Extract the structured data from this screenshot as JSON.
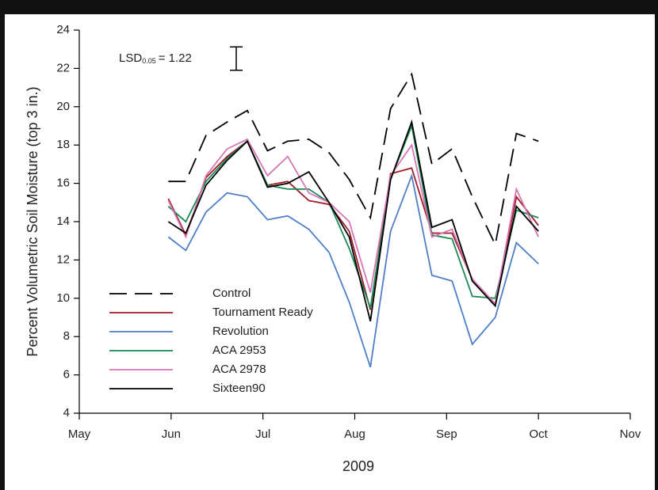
{
  "chart_data": {
    "type": "line",
    "xlabel": "2009",
    "ylabel": "Percent Volumetric Soil Moisture (top 3 in.)",
    "x": [
      5.97,
      6.16,
      6.38,
      6.61,
      6.83,
      7.05,
      7.27,
      7.5,
      7.72,
      7.94,
      8.17,
      8.39,
      8.62,
      8.84,
      9.06,
      9.28,
      9.53,
      9.76,
      10.0
    ],
    "xlim": [
      5,
      11
    ],
    "xticks": [
      {
        "value": 5,
        "label": "May"
      },
      {
        "value": 6,
        "label": "Jun"
      },
      {
        "value": 7,
        "label": "Jul"
      },
      {
        "value": 8,
        "label": "Aug"
      },
      {
        "value": 9,
        "label": "Sep"
      },
      {
        "value": 10,
        "label": "Oct"
      },
      {
        "value": 11,
        "label": "Nov"
      }
    ],
    "ylim": [
      4,
      24
    ],
    "yticks": [
      4,
      6,
      8,
      10,
      12,
      14,
      16,
      18,
      20,
      22,
      24
    ],
    "legend": "lower-left",
    "lsd_label": "LSD",
    "lsd_subscript": "0.05",
    "lsd_text": "= 1.22",
    "lsd_value": 1.22,
    "series": [
      {
        "name": "Control",
        "color": "#000000",
        "dashed": true,
        "values": [
          16.1,
          16.1,
          18.5,
          19.2,
          19.8,
          17.7,
          18.2,
          18.3,
          17.6,
          16.2,
          14.2,
          19.9,
          21.7,
          17.0,
          17.8,
          15.3,
          12.8,
          18.6,
          18.2
        ]
      },
      {
        "name": "Tournament Ready",
        "color": "#a01c2a",
        "values": [
          15.2,
          13.3,
          16.3,
          17.4,
          18.2,
          15.9,
          16.1,
          15.1,
          14.9,
          13.5,
          9.4,
          16.5,
          16.8,
          13.4,
          13.4,
          11.0,
          9.7,
          15.3,
          13.8
        ]
      },
      {
        "name": "Revolution",
        "color": "#4f7fc8",
        "values": [
          13.2,
          12.5,
          14.5,
          15.5,
          15.3,
          14.1,
          14.3,
          13.6,
          12.4,
          9.8,
          6.4,
          13.5,
          16.4,
          11.2,
          10.9,
          7.6,
          9.0,
          12.9,
          11.8
        ]
      },
      {
        "name": "ACA 2953",
        "color": "#1a8a55",
        "values": [
          14.8,
          14.0,
          16.1,
          17.3,
          18.2,
          15.9,
          15.7,
          15.7,
          15.0,
          12.6,
          9.5,
          16.2,
          19.0,
          13.3,
          13.1,
          10.1,
          10.0,
          14.6,
          14.2
        ]
      },
      {
        "name": "ACA 2978",
        "color": "#d676b5",
        "values": [
          15.1,
          13.2,
          16.4,
          17.8,
          18.3,
          16.4,
          17.4,
          15.5,
          15.0,
          14.0,
          10.3,
          16.4,
          18.0,
          13.2,
          13.6,
          11.0,
          9.7,
          15.7,
          13.2
        ]
      },
      {
        "name": "Sixteen90",
        "color": "#000000",
        "values": [
          14.0,
          13.4,
          15.9,
          17.2,
          18.2,
          15.8,
          16.0,
          16.6,
          15.0,
          13.2,
          8.8,
          16.2,
          19.2,
          13.7,
          14.1,
          10.9,
          9.6,
          14.8,
          13.5
        ]
      }
    ]
  }
}
